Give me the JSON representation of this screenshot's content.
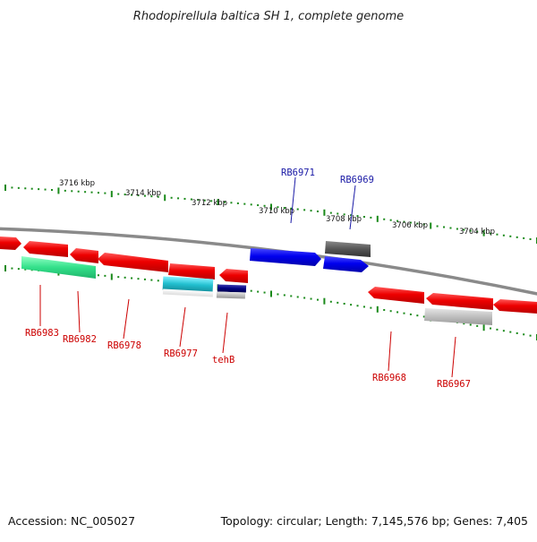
{
  "title": "Rhodopirellula baltica SH 1, complete genome",
  "footer": {
    "accession": "Accession: NC_005027",
    "summary": "Topology: circular; Length: 7,145,576 bp; Genes: 7,405"
  },
  "scale_labels": [
    "3716 kbp",
    "3714 kbp",
    "3712 kbp",
    "3710 kbp",
    "3708 kbp",
    "3706 kbp",
    "3704 kbp"
  ],
  "gene_labels": [
    {
      "id": "rb6971",
      "text": "RB6971",
      "color": "#1a1aa6"
    },
    {
      "id": "rb6969",
      "text": "RB6969",
      "color": "#1a1aa6"
    },
    {
      "id": "rb6983",
      "text": "RB6983",
      "color": "#cc0000"
    },
    {
      "id": "rb6982",
      "text": "RB6982",
      "color": "#cc0000"
    },
    {
      "id": "rb6978",
      "text": "RB6978",
      "color": "#cc0000"
    },
    {
      "id": "rb6977",
      "text": "RB6977",
      "color": "#cc0000"
    },
    {
      "id": "tehb",
      "text": "tehB",
      "color": "#cc0000"
    },
    {
      "id": "rb6968",
      "text": "RB6968",
      "color": "#cc0000"
    },
    {
      "id": "rb6967",
      "text": "RB6967",
      "color": "#cc0000"
    }
  ],
  "colors": {
    "backbone": "#7f7f7f",
    "tick": "#1a8a1a",
    "forward_gene": "#0000ee",
    "reverse_gene": "#ee0000",
    "green_feature": "#33e08a",
    "cyan_feature": "#22bfcf",
    "navy_feature": "#000080",
    "dark_gray_feature": "#555555",
    "light_gray_feature": "#bfbfbf"
  }
}
